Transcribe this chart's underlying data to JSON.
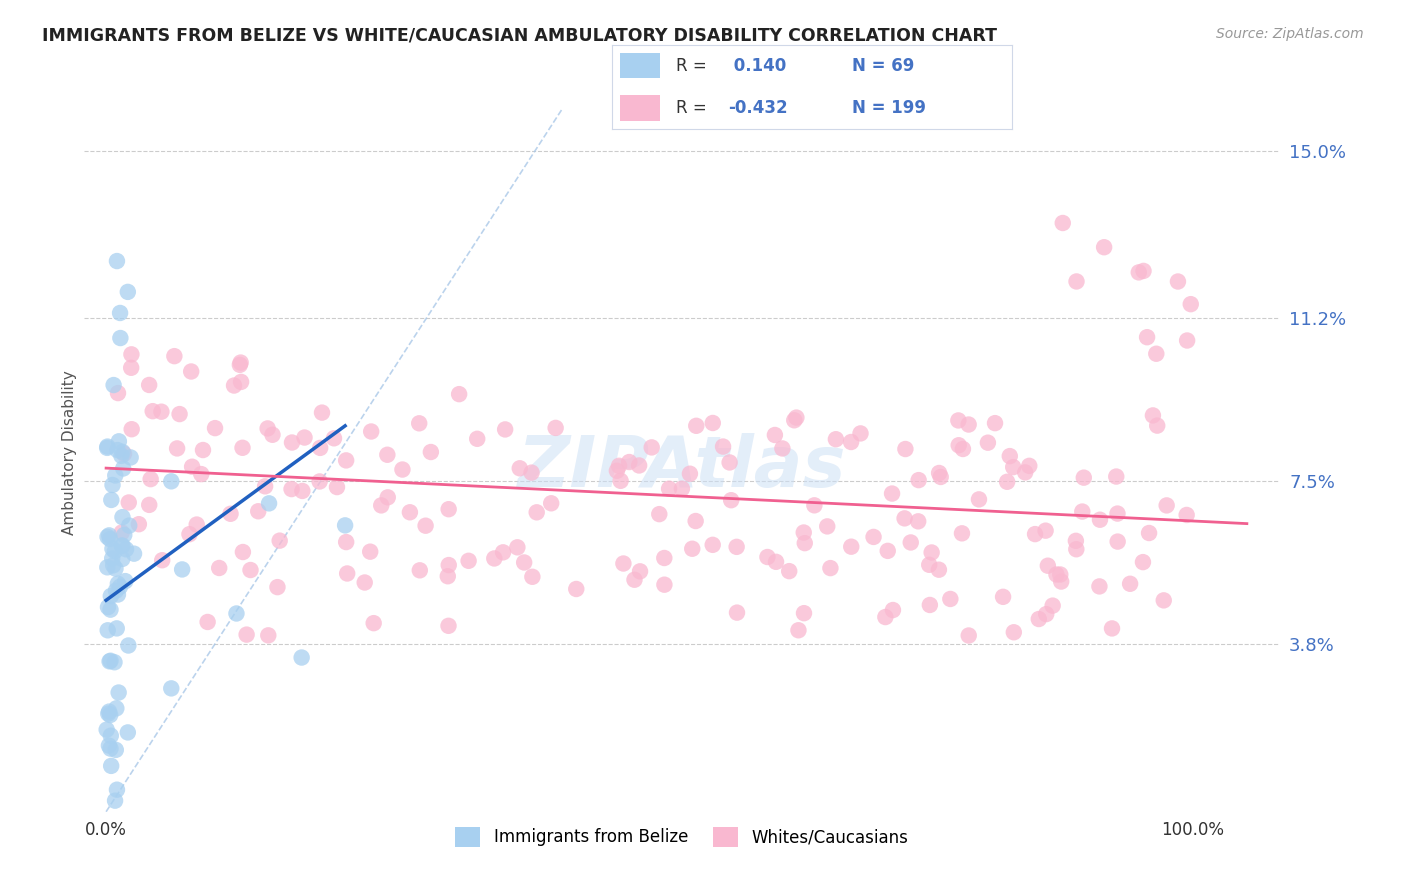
{
  "title": "IMMIGRANTS FROM BELIZE VS WHITE/CAUCASIAN AMBULATORY DISABILITY CORRELATION CHART",
  "source": "Source: ZipAtlas.com",
  "ylabel": "Ambulatory Disability",
  "y_ticks": [
    0.038,
    0.075,
    0.112,
    0.15
  ],
  "y_tick_labels": [
    "3.8%",
    "7.5%",
    "11.2%",
    "15.0%"
  ],
  "ylim": [
    0.0,
    0.163
  ],
  "xlim": [
    -0.02,
    1.08
  ],
  "r_blue": 0.14,
  "n_blue": 69,
  "r_pink": -0.432,
  "n_pink": 199,
  "blue_color": "#a8d0f0",
  "pink_color": "#f9b8d0",
  "blue_line_color": "#2060c0",
  "pink_line_color": "#f06090",
  "legend_blue_label": "Immigrants from Belize",
  "legend_pink_label": "Whites/Caucasians",
  "watermark": "ZIPAtlas",
  "background_color": "#ffffff"
}
